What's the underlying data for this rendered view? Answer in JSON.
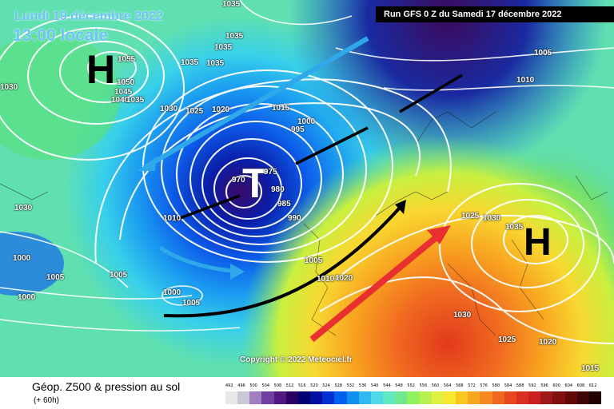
{
  "header": {
    "date_label": "Lundi 19 décembre 2022",
    "time_label": "13:00 locale",
    "run_label": "Run GFS 0 Z du Samedi 17 décembre 2022"
  },
  "systems": {
    "high_1": "H",
    "low_1": "T",
    "high_2": "H"
  },
  "isobars": [
    {
      "text": "1035"
    },
    {
      "text": "1035"
    },
    {
      "text": "1035"
    },
    {
      "text": "1035"
    },
    {
      "text": "1035"
    },
    {
      "text": "1055"
    },
    {
      "text": "1050"
    },
    {
      "text": "1045"
    },
    {
      "text": "1040"
    },
    {
      "text": "1035"
    },
    {
      "text": "1030"
    },
    {
      "text": "1030"
    },
    {
      "text": "1030"
    },
    {
      "text": "1025"
    },
    {
      "text": "1020"
    },
    {
      "text": "1015"
    },
    {
      "text": "1000"
    },
    {
      "text": "995"
    },
    {
      "text": "975"
    },
    {
      "text": "970"
    },
    {
      "text": "980"
    },
    {
      "text": "985"
    },
    {
      "text": "990"
    },
    {
      "text": "1010"
    },
    {
      "text": "1005"
    },
    {
      "text": "1005"
    },
    {
      "text": "1000"
    },
    {
      "text": "1005"
    },
    {
      "text": "1000"
    },
    {
      "text": "1000"
    },
    {
      "text": "1005"
    },
    {
      "text": "1010"
    },
    {
      "text": "1020"
    },
    {
      "text": "1025"
    },
    {
      "text": "1030"
    },
    {
      "text": "1035"
    },
    {
      "text": "1030"
    },
    {
      "text": "1025"
    },
    {
      "text": "1020"
    },
    {
      "text": "1015"
    },
    {
      "text": "1005"
    },
    {
      "text": "1010"
    }
  ],
  "copyright": "Copyright © 2022 Meteociel.fr",
  "legend": {
    "title": "Géop. Z500 & pression au sol",
    "subtitle": "(+ 60h)",
    "ticks": [
      "492",
      "496",
      "500",
      "504",
      "508",
      "512",
      "516",
      "520",
      "524",
      "528",
      "532",
      "536",
      "540",
      "544",
      "548",
      "552",
      "556",
      "560",
      "564",
      "568",
      "572",
      "576",
      "580",
      "584",
      "588",
      "592",
      "596",
      "600",
      "604",
      "608",
      "612"
    ],
    "colors": [
      "#e8e8e8",
      "#c8c8d8",
      "#a080c0",
      "#7040a0",
      "#501880",
      "#2a0060",
      "#000070",
      "#0010a0",
      "#0030d0",
      "#0060f0",
      "#1090f0",
      "#30b8f0",
      "#50d8e8",
      "#60e8c0",
      "#70e890",
      "#90f060",
      "#b8f050",
      "#e0f040",
      "#f8e830",
      "#f8c820",
      "#f8a820",
      "#f88820",
      "#f06820",
      "#e84820",
      "#d83020",
      "#c82020",
      "#a01818",
      "#801010",
      "#600808",
      "#400404",
      "#200000"
    ]
  },
  "arrows": {
    "light_blue": "#2ea8e8",
    "black": "#000000",
    "red": "#e83030"
  }
}
